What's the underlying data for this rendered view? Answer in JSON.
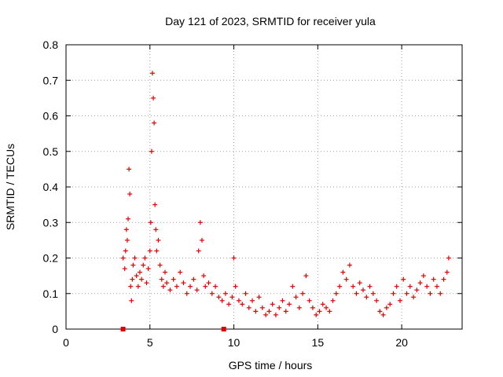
{
  "chart_data": {
    "type": "scatter",
    "title": "Day 121 of 2023, SRMTID for receiver yula",
    "xlabel": "GPS time / hours",
    "ylabel": "SRMTID / TECUs",
    "xlim": [
      0,
      23.6
    ],
    "ylim": [
      0,
      0.8
    ],
    "xticks": [
      "0",
      "5",
      "10",
      "15",
      "20"
    ],
    "xtick_values": [
      0,
      5,
      10,
      15,
      20
    ],
    "yticks": [
      "0",
      "0.1",
      "0.2",
      "0.3",
      "0.4",
      "0.5",
      "0.6",
      "0.7",
      "0.8"
    ],
    "ytick_values": [
      0,
      0.1,
      0.2,
      0.3,
      0.4,
      0.5,
      0.6,
      0.7,
      0.8
    ],
    "grid": true,
    "marker": "plus",
    "color": "#e00000",
    "series": [
      {
        "name": "SRMTID",
        "x": [
          3.4,
          3.5,
          3.55,
          3.6,
          3.65,
          3.7,
          3.75,
          3.8,
          3.85,
          3.9,
          3.95,
          4.0,
          4.1,
          4.2,
          4.3,
          4.4,
          4.5,
          4.6,
          4.7,
          4.8,
          4.9,
          5.0,
          5.05,
          5.1,
          5.15,
          5.2,
          5.25,
          5.3,
          5.35,
          5.4,
          5.5,
          5.6,
          5.7,
          5.8,
          5.9,
          6.0,
          6.2,
          6.4,
          6.6,
          6.8,
          7.0,
          7.2,
          7.4,
          7.6,
          7.8,
          7.9,
          8.0,
          8.1,
          8.2,
          8.3,
          8.5,
          8.7,
          8.9,
          9.1,
          9.3,
          9.5,
          9.7,
          9.9,
          10.0,
          10.1,
          10.3,
          10.5,
          10.7,
          10.9,
          11.1,
          11.3,
          11.5,
          11.7,
          11.9,
          12.1,
          12.3,
          12.5,
          12.7,
          12.9,
          13.1,
          13.3,
          13.5,
          13.7,
          13.9,
          14.1,
          14.3,
          14.5,
          14.7,
          14.9,
          15.1,
          15.3,
          15.5,
          15.7,
          15.9,
          16.1,
          16.3,
          16.5,
          16.7,
          16.9,
          17.1,
          17.3,
          17.5,
          17.7,
          17.9,
          18.1,
          18.3,
          18.5,
          18.7,
          18.9,
          19.1,
          19.3,
          19.5,
          19.7,
          19.9,
          20.1,
          20.3,
          20.5,
          20.7,
          20.9,
          21.1,
          21.3,
          21.5,
          21.7,
          21.9,
          22.1,
          22.3,
          22.5,
          22.7,
          22.8
        ],
        "y": [
          0.2,
          0.17,
          0.22,
          0.28,
          0.25,
          0.31,
          0.45,
          0.38,
          0.12,
          0.08,
          0.14,
          0.18,
          0.2,
          0.15,
          0.12,
          0.16,
          0.14,
          0.18,
          0.2,
          0.13,
          0.17,
          0.22,
          0.3,
          0.5,
          0.72,
          0.65,
          0.58,
          0.35,
          0.28,
          0.22,
          0.25,
          0.18,
          0.14,
          0.12,
          0.16,
          0.13,
          0.11,
          0.14,
          0.12,
          0.16,
          0.13,
          0.1,
          0.12,
          0.14,
          0.11,
          0.22,
          0.3,
          0.25,
          0.15,
          0.12,
          0.13,
          0.1,
          0.12,
          0.09,
          0.08,
          0.1,
          0.07,
          0.09,
          0.2,
          0.12,
          0.08,
          0.07,
          0.1,
          0.06,
          0.08,
          0.05,
          0.09,
          0.06,
          0.04,
          0.05,
          0.07,
          0.04,
          0.06,
          0.08,
          0.05,
          0.07,
          0.12,
          0.09,
          0.06,
          0.1,
          0.15,
          0.08,
          0.06,
          0.04,
          0.05,
          0.07,
          0.06,
          0.05,
          0.08,
          0.1,
          0.12,
          0.16,
          0.14,
          0.18,
          0.12,
          0.1,
          0.13,
          0.11,
          0.09,
          0.12,
          0.1,
          0.08,
          0.05,
          0.04,
          0.06,
          0.07,
          0.1,
          0.12,
          0.08,
          0.14,
          0.1,
          0.12,
          0.09,
          0.11,
          0.13,
          0.15,
          0.12,
          0.1,
          0.14,
          0.12,
          0.1,
          0.14,
          0.16,
          0.2
        ],
        "markers_on_axis": [
          3.4,
          9.4
        ]
      }
    ]
  }
}
